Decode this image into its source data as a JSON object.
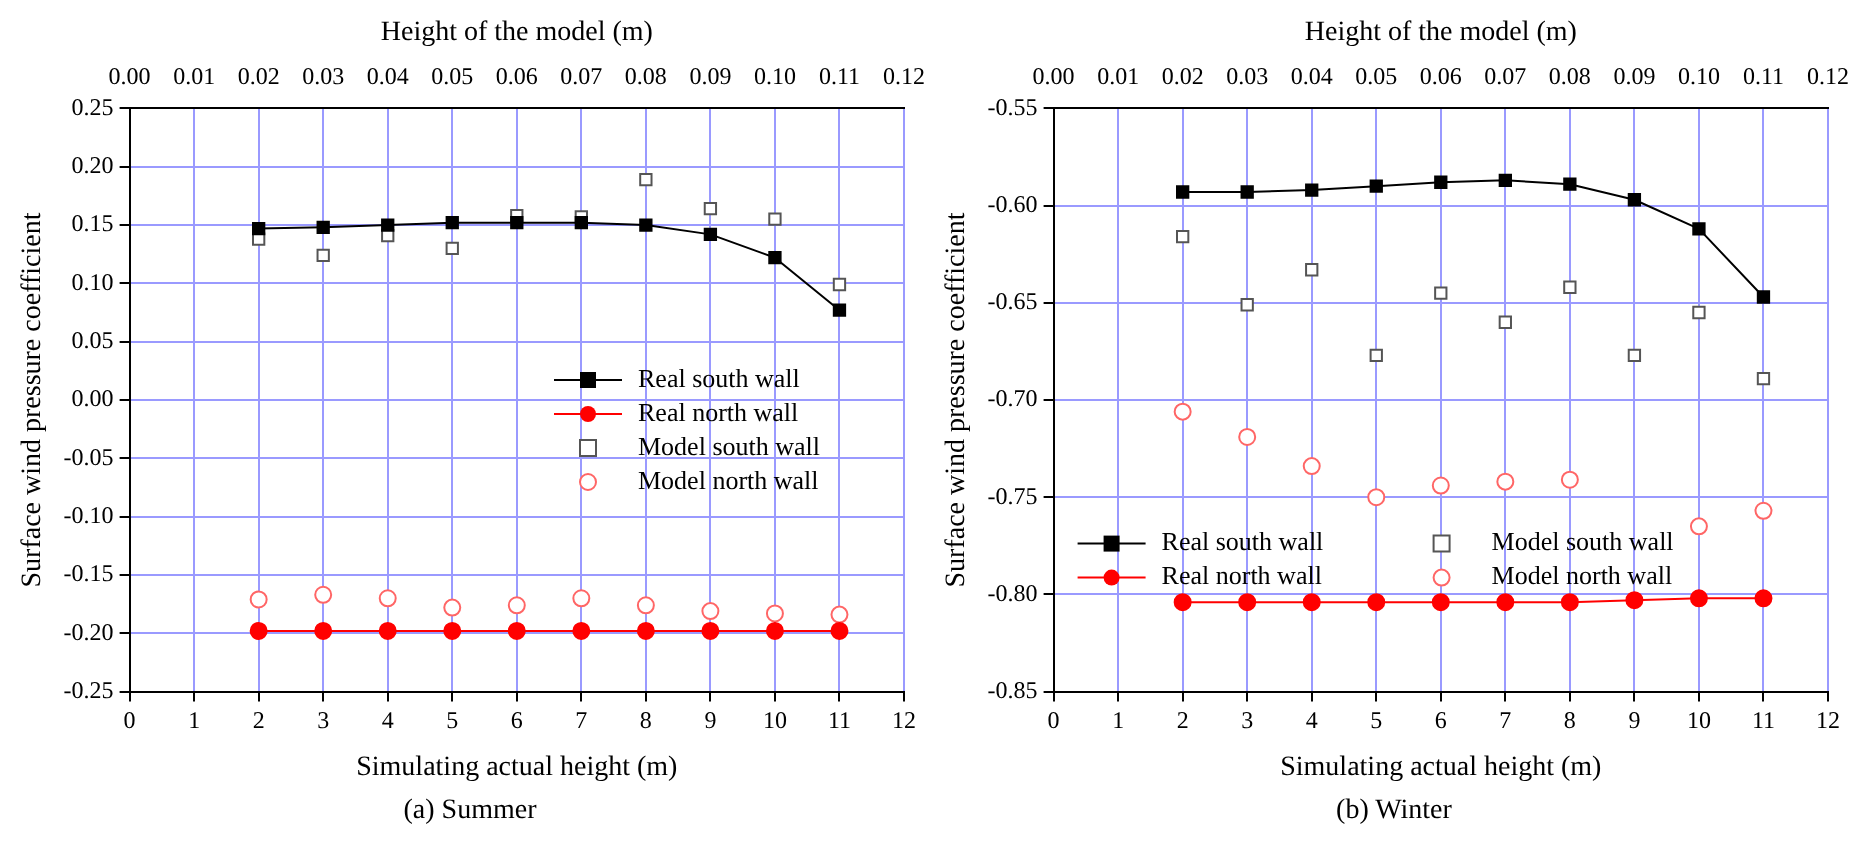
{
  "chart_data": [
    {
      "type": "line",
      "title": null,
      "annotations": [
        "(a) Summer"
      ],
      "xlabel": "Simulating actual height (m)",
      "x2label": "Height of the model (m)",
      "ylabel": "Surface wind pressure coefficient",
      "x": [
        2,
        3,
        4,
        5,
        6,
        7,
        8,
        9,
        10,
        11
      ],
      "xlim": [
        0,
        12
      ],
      "xticks": [
        0,
        1,
        2,
        3,
        4,
        5,
        6,
        7,
        8,
        9,
        10,
        11,
        12
      ],
      "x2lim": [
        0,
        0.12
      ],
      "x2ticks": [
        {
          "value": 0,
          "label": "0.00"
        },
        {
          "value": 0.01,
          "label": "0.01"
        },
        {
          "value": 0.02,
          "label": "0.02"
        },
        {
          "value": 0.03,
          "label": "0.03"
        },
        {
          "value": 0.04,
          "label": "0.04"
        },
        {
          "value": 0.05,
          "label": "0.05"
        },
        {
          "value": 0.06,
          "label": "0.06"
        },
        {
          "value": 0.07,
          "label": "0.07"
        },
        {
          "value": 0.08,
          "label": "0.08"
        },
        {
          "value": 0.09,
          "label": "0.09"
        },
        {
          "value": 0.1,
          "label": "0.10"
        },
        {
          "value": 0.11,
          "label": "0.11"
        },
        {
          "value": 0.12,
          "label": "0.12"
        }
      ],
      "ylim": [
        -0.25,
        0.25
      ],
      "yticks": [
        {
          "value": -0.25,
          "label": "-0.25"
        },
        {
          "value": -0.2,
          "label": "-0.20"
        },
        {
          "value": -0.15,
          "label": "-0.15"
        },
        {
          "value": -0.1,
          "label": "-0.10"
        },
        {
          "value": -0.05,
          "label": "-0.05"
        },
        {
          "value": 0,
          "label": "0.00"
        },
        {
          "value": 0.05,
          "label": "0.05"
        },
        {
          "value": 0.1,
          "label": "0.10"
        },
        {
          "value": 0.15,
          "label": "0.15"
        },
        {
          "value": 0.2,
          "label": "0.20"
        },
        {
          "value": 0.25,
          "label": "0.25"
        }
      ],
      "grid": true,
      "legend": "right",
      "series": [
        {
          "name": "Real south wall",
          "type": "line",
          "marker": "square",
          "color": "#000000",
          "values": [
            0.147,
            0.148,
            0.15,
            0.152,
            0.152,
            0.152,
            0.15,
            0.142,
            0.122,
            0.077
          ]
        },
        {
          "name": "Real north wall",
          "type": "line",
          "marker": "circle",
          "color": "#ff0000",
          "values": [
            -0.198,
            -0.198,
            -0.198,
            -0.198,
            -0.198,
            -0.198,
            -0.198,
            -0.198,
            -0.198,
            -0.198
          ]
        },
        {
          "name": "Model south wall",
          "type": "scatter",
          "marker": "square",
          "color": "#555555",
          "values": [
            0.138,
            0.124,
            0.141,
            0.13,
            0.158,
            0.157,
            0.189,
            0.164,
            0.155,
            0.099
          ]
        },
        {
          "name": "Model north wall",
          "type": "scatter",
          "marker": "circle",
          "color": "#ff6666",
          "values": [
            -0.171,
            -0.167,
            -0.17,
            -0.178,
            -0.176,
            -0.17,
            -0.176,
            -0.181,
            -0.183,
            -0.184
          ]
        }
      ]
    },
    {
      "type": "line",
      "title": null,
      "annotations": [
        "(b) Winter"
      ],
      "xlabel": "Simulating actual height (m)",
      "x2label": "Height of the model (m)",
      "ylabel": "Surface wind pressure coefficient",
      "x": [
        2,
        3,
        4,
        5,
        6,
        7,
        8,
        9,
        10,
        11
      ],
      "xlim": [
        0,
        12
      ],
      "xticks": [
        0,
        1,
        2,
        3,
        4,
        5,
        6,
        7,
        8,
        9,
        10,
        11,
        12
      ],
      "x2lim": [
        0,
        0.12
      ],
      "x2ticks": [
        {
          "value": 0,
          "label": "0.00"
        },
        {
          "value": 0.01,
          "label": "0.01"
        },
        {
          "value": 0.02,
          "label": "0.02"
        },
        {
          "value": 0.03,
          "label": "0.03"
        },
        {
          "value": 0.04,
          "label": "0.04"
        },
        {
          "value": 0.05,
          "label": "0.05"
        },
        {
          "value": 0.06,
          "label": "0.06"
        },
        {
          "value": 0.07,
          "label": "0.07"
        },
        {
          "value": 0.08,
          "label": "0.08"
        },
        {
          "value": 0.09,
          "label": "0.09"
        },
        {
          "value": 0.1,
          "label": "0.10"
        },
        {
          "value": 0.11,
          "label": "0.11"
        },
        {
          "value": 0.12,
          "label": "0.12"
        }
      ],
      "ylim": [
        -0.85,
        -0.55
      ],
      "yticks": [
        -0.85,
        {
          "value": -0.8,
          "label": "-0.80"
        },
        -0.75,
        {
          "value": -0.7,
          "label": "-0.70"
        },
        -0.65,
        {
          "value": -0.6,
          "label": "-0.60"
        },
        -0.55
      ],
      "grid": true,
      "legend": "bottom",
      "series": [
        {
          "name": "Real south wall",
          "type": "line",
          "marker": "square",
          "color": "#000000",
          "values": [
            -0.593,
            -0.593,
            -0.592,
            -0.59,
            -0.588,
            -0.587,
            -0.589,
            -0.597,
            -0.612,
            -0.647
          ]
        },
        {
          "name": "Real north wall",
          "type": "line",
          "marker": "circle",
          "color": "#ff0000",
          "values": [
            -0.804,
            -0.804,
            -0.804,
            -0.804,
            -0.804,
            -0.804,
            -0.804,
            -0.803,
            -0.802,
            -0.802
          ]
        },
        {
          "name": "Model south wall",
          "type": "scatter",
          "marker": "square",
          "color": "#555555",
          "values": [
            -0.616,
            -0.651,
            -0.633,
            -0.677,
            -0.645,
            -0.66,
            -0.642,
            -0.677,
            -0.655,
            -0.689
          ]
        },
        {
          "name": "Model north wall",
          "type": "scatter",
          "marker": "circle",
          "color": "#ff6666",
          "values": [
            -0.706,
            -0.719,
            -0.734,
            -0.75,
            -0.744,
            -0.742,
            -0.741,
            null,
            -0.765,
            -0.757
          ]
        }
      ]
    }
  ]
}
